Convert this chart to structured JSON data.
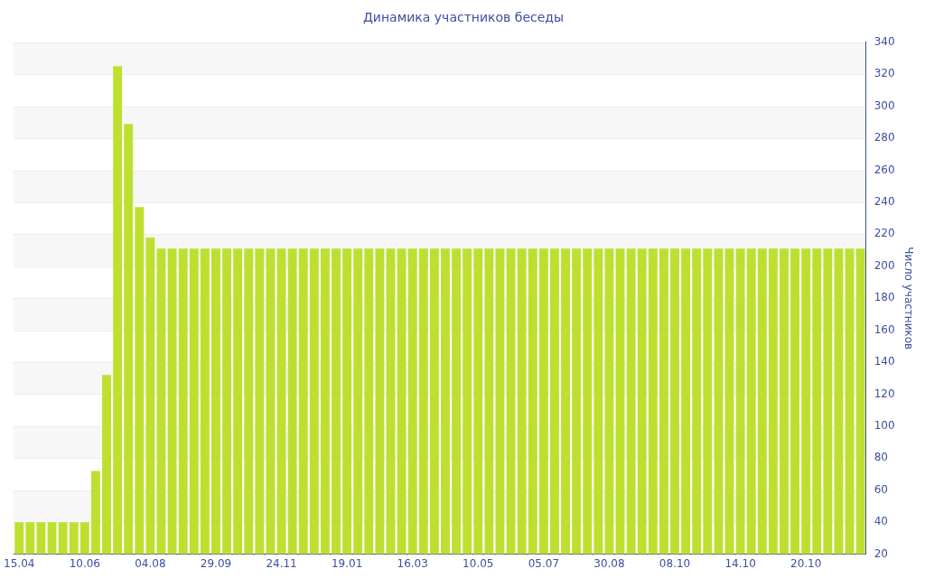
{
  "chart_data": {
    "type": "bar",
    "title": "Динамика участников беседы",
    "ylabel": "Число участников",
    "categories": [
      "15.04",
      null,
      null,
      null,
      null,
      null,
      "10.06",
      null,
      null,
      null,
      null,
      null,
      "04.08",
      null,
      null,
      null,
      null,
      null,
      "29.09",
      null,
      null,
      null,
      null,
      null,
      "24.11",
      null,
      null,
      null,
      null,
      null,
      "19.01",
      null,
      null,
      null,
      null,
      null,
      "16.03",
      null,
      null,
      null,
      null,
      null,
      "10.05",
      null,
      null,
      null,
      null,
      null,
      "05.07",
      null,
      null,
      null,
      null,
      null,
      "30.08",
      null,
      null,
      null,
      null,
      null,
      "08.10",
      null,
      null,
      null,
      null,
      null,
      "14.10",
      null,
      null,
      null,
      null,
      null,
      "20.10",
      null,
      null,
      null,
      null,
      null
    ],
    "values": [
      40,
      40,
      40,
      40,
      40,
      40,
      40,
      72,
      132,
      325,
      289,
      237,
      218,
      211,
      211,
      211,
      211,
      211,
      211,
      211,
      211,
      211,
      211,
      211,
      211,
      211,
      211,
      211,
      211,
      211,
      211,
      211,
      211,
      211,
      211,
      211,
      211,
      211,
      211,
      211,
      211,
      211,
      211,
      211,
      211,
      211,
      211,
      211,
      211,
      211,
      211,
      211,
      211,
      211,
      211,
      211,
      211,
      211,
      211,
      211,
      211,
      211,
      211,
      211,
      211,
      211,
      211,
      211,
      211,
      211,
      211,
      211,
      211,
      211,
      211,
      211,
      211,
      211
    ],
    "color": "#bde030",
    "ylim": [
      20,
      340
    ],
    "yticks": [
      20,
      40,
      60,
      80,
      100,
      120,
      140,
      160,
      180,
      200,
      220,
      240,
      260,
      280,
      300,
      320,
      340
    ],
    "grid": true,
    "legend": false
  }
}
